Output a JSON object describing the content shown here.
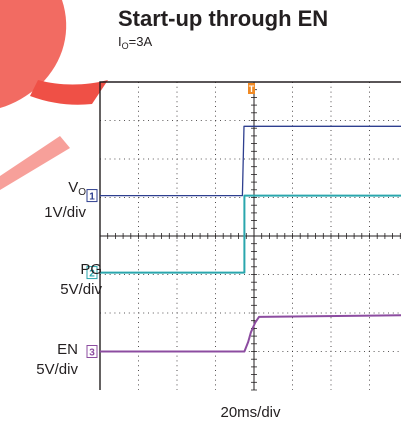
{
  "chart_data": {
    "type": "line",
    "title": "Start-up through EN",
    "subtitle": {
      "prefix": "I",
      "sub": "O",
      "suffix": "=3A"
    },
    "xlabel": "20ms/div",
    "grid": true,
    "xlim": [
      -4,
      4.6
    ],
    "ylim": [
      -4,
      4
    ],
    "trigger_marker": "T",
    "channels": [
      {
        "id": "vo",
        "marker": "1",
        "color": "#2e3f8f",
        "label_main": "V",
        "label_sub": "O",
        "scale": "1V/div",
        "x": [
          -4,
          -0.3,
          -0.26,
          4.6
        ],
        "values": [
          1.05,
          1.05,
          2.85,
          2.85
        ]
      },
      {
        "id": "pg",
        "marker": "2",
        "color": "#2aa6ad",
        "label_main": "PG",
        "label_sub": "",
        "scale": "5V/div",
        "x": [
          -4,
          -0.25,
          -0.25,
          4.6
        ],
        "values": [
          -0.95,
          -0.95,
          1.05,
          1.05
        ]
      },
      {
        "id": "en",
        "marker": "3",
        "color": "#8c4ca0",
        "label_main": "EN",
        "label_sub": "",
        "scale": "5V/div",
        "x": [
          -4,
          -0.25,
          -0.15,
          -0.08,
          0.03,
          0.13,
          4.6
        ],
        "values": [
          -3.0,
          -3.0,
          -2.75,
          -2.5,
          -2.25,
          -2.1,
          -2.05
        ]
      }
    ]
  }
}
